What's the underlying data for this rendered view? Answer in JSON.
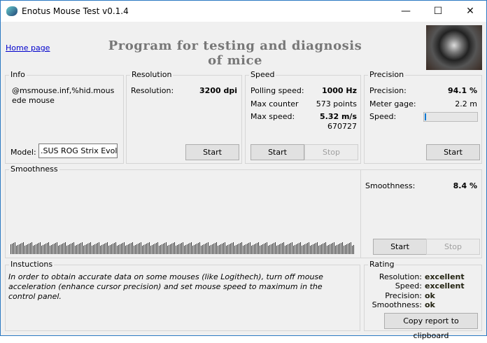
{
  "window": {
    "title": "Enotus Mouse Test v0.1.4",
    "minimize": "—",
    "maximize": "☐",
    "close": "✕"
  },
  "header": {
    "home_link": "Home page",
    "heading": "Program for testing and diagnosis of mice"
  },
  "info": {
    "legend": "Info",
    "device": "@msmouse.inf,%hid.mousede mouse",
    "model_label": "Model:",
    "model_value": ".SUS ROG Strix Evolve"
  },
  "resolution": {
    "legend": "Resolution",
    "label": "Resolution:",
    "value": "3200 dpi",
    "start": "Start"
  },
  "speed": {
    "legend": "Speed",
    "polling_label": "Polling speed:",
    "polling_value": "1000 Hz",
    "counter_label": "Max counter",
    "counter_value": "573 points",
    "max_label": "Max  speed:",
    "max_value": "5.32 m/s",
    "max_sub": "670727",
    "start": "Start",
    "stop": "Stop"
  },
  "precision": {
    "legend": "Precision",
    "precision_label": "Precision:",
    "precision_value": "94.1 %",
    "meter_label": "Meter gage:",
    "meter_value": "2.2 m",
    "speed_label": "Speed:",
    "speed_fill_percent": 1,
    "start": "Start"
  },
  "smoothness": {
    "legend": "Smoothness",
    "label": "Smoothness:",
    "value": "8.4 %",
    "start": "Start",
    "stop": "Stop"
  },
  "instructions": {
    "legend": "Instuctions",
    "text": "In order to obtain accurate data on some mouses (like Logithech), turn off mouse acceleration (enhance cursor precision) and set mouse speed to maximum in the control panel."
  },
  "rating": {
    "legend": "Rating",
    "items": [
      {
        "k": "Resolution:",
        "v": "excellent"
      },
      {
        "k": "Speed:",
        "v": "excellent"
      },
      {
        "k": "Precision:",
        "v": "ok"
      },
      {
        "k": "Smoothness:",
        "v": "ok"
      }
    ],
    "copy": "Copy report to clipboard"
  },
  "colors": {
    "accent": "#0678d4",
    "border": "#2b79c2"
  }
}
